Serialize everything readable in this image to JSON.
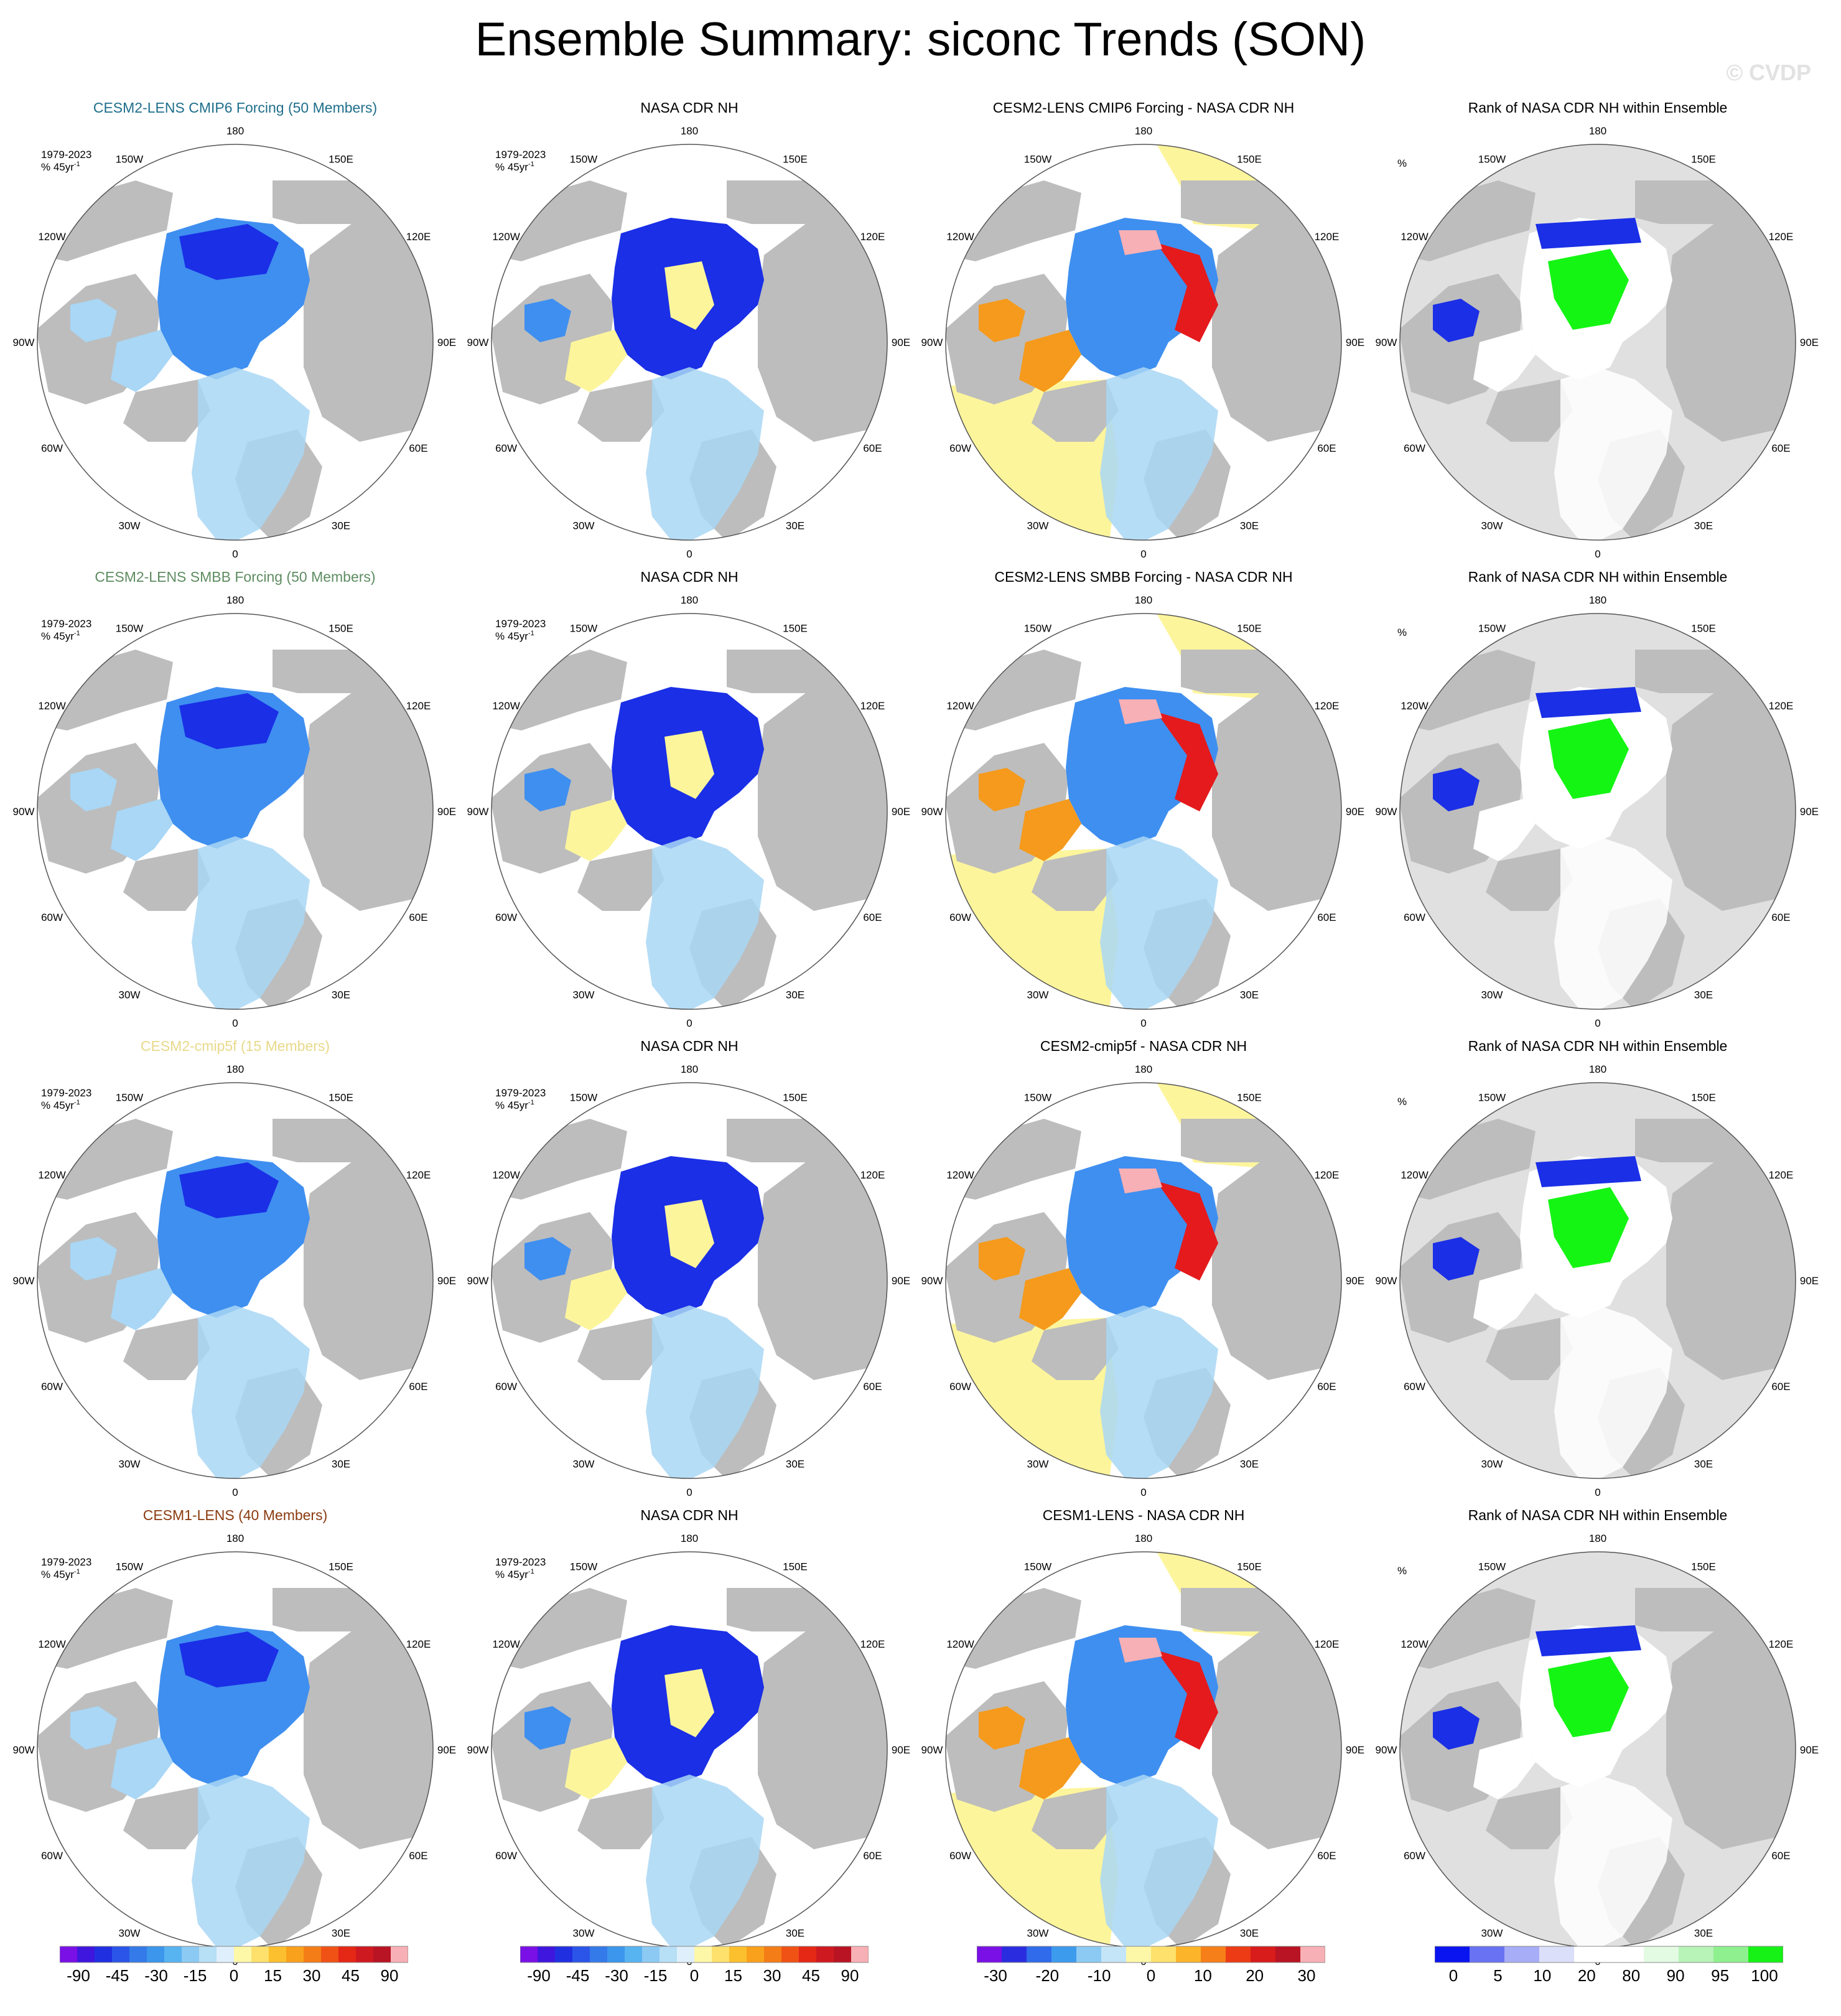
{
  "title": "Ensemble Summary: siconc Trends (SON)",
  "watermark": "© CVDP",
  "rows": [
    {
      "ensemble_title": "CESM2-LENS CMIP6 Forcing (50 Members)",
      "ensemble_color": "#1f6f8b",
      "obs_title": "NASA CDR NH",
      "diff_title": "CESM2-LENS CMIP6 Forcing - NASA CDR NH",
      "rank_title": "Rank of NASA CDR NH within Ensemble"
    },
    {
      "ensemble_title": "CESM2-LENS SMBB Forcing (50 Members)",
      "ensemble_color": "#5e8c61",
      "obs_title": "NASA CDR NH",
      "diff_title": "CESM2-LENS SMBB Forcing - NASA CDR NH",
      "rank_title": "Rank of NASA CDR NH within Ensemble"
    },
    {
      "ensemble_title": "CESM2-cmip5f (15 Members)",
      "ensemble_color": "#e8d98a",
      "obs_title": "NASA CDR NH",
      "diff_title": "CESM2-cmip5f - NASA CDR NH",
      "rank_title": "Rank of NASA CDR NH within Ensemble"
    },
    {
      "ensemble_title": "CESM1-LENS (40 Members)",
      "ensemble_color": "#8b3a0f",
      "obs_title": "NASA CDR NH",
      "diff_title": "CESM1-LENS - NASA CDR NH",
      "rank_title": "Rank of NASA CDR NH within Ensemble"
    }
  ],
  "trend_period": "1979-2023",
  "trend_units": "% 45yr",
  "trend_units_sup": "-1",
  "rank_units": "%",
  "lon_labels": [
    "180",
    "150E",
    "120E",
    "90E",
    "60E",
    "30E",
    "0",
    "30W",
    "60W",
    "90W",
    "120W",
    "150W"
  ],
  "colors": {
    "land": "#bdbdbd",
    "rank_background": "#e0e0e0",
    "deep_blue": "#1a2fe6",
    "mid_blue": "#3f8ff0",
    "light_blue": "#a9d7f5",
    "pale_yellow": "#fdf59c",
    "orange": "#f59a1c",
    "red": "#e41a1c",
    "pink": "#f7b0b5",
    "green": "#14f514"
  },
  "colorbars": {
    "trend": {
      "labels": [
        "-90",
        "-45",
        "-30",
        "-15",
        "0",
        "15",
        "30",
        "45",
        "90"
      ],
      "colors": [
        "#7a0fe6",
        "#3f16dd",
        "#2030e0",
        "#2a55e8",
        "#347ae9",
        "#3b96ec",
        "#58b3f1",
        "#8ccaf3",
        "#b7dff6",
        "#dfeffb",
        "#fdf7a8",
        "#fde16c",
        "#fcc02e",
        "#f9a11c",
        "#f57d17",
        "#f05216",
        "#e52716",
        "#cf1920",
        "#b81424",
        "#f7b0b5"
      ]
    },
    "diff": {
      "labels": [
        "-30",
        "-20",
        "-10",
        "0",
        "10",
        "20",
        "30"
      ],
      "colors": [
        "#7a0fe6",
        "#2a2ddf",
        "#2f6bea",
        "#3d9bed",
        "#8ccaf3",
        "#c4e5f8",
        "#fdf7a8",
        "#fde16c",
        "#fcb52a",
        "#f77f1a",
        "#ec3b15",
        "#d81b1b",
        "#b81424",
        "#f7b0b5"
      ]
    },
    "rank": {
      "labels": [
        "0",
        "5",
        "10",
        "20",
        "80",
        "90",
        "95",
        "100"
      ],
      "colors": [
        "#0a14f0",
        "#6872f2",
        "#a7adf6",
        "#dcdff9",
        "#ffffff",
        "#ffffff",
        "#e3fae3",
        "#b8f3b8",
        "#8ef08e",
        "#16f216"
      ]
    }
  }
}
